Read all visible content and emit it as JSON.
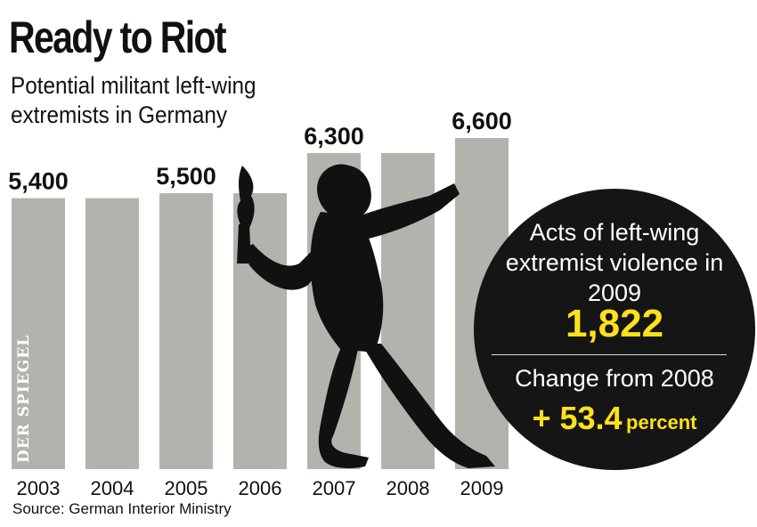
{
  "header": {
    "title": "Ready to Riot",
    "subtitle": "Potential militant left-wing extremists in Germany"
  },
  "source": "Source: German Interior Ministry",
  "watermark": "DER SPIEGEL",
  "info_circle": {
    "acts_label": "Acts of left-wing extremist violence in 2009",
    "acts_value": "1,822",
    "change_label": "Change from 2008",
    "change_value": "+ 53.4",
    "change_unit": "percent",
    "background_color": "#151515",
    "highlight_color": "#ffe11a"
  },
  "colors": {
    "bar": "#b3b2ad",
    "silhouette": "#111111"
  },
  "chart_data": {
    "type": "bar",
    "categories": [
      "2003",
      "2004",
      "2005",
      "2006",
      "2007",
      "2008",
      "2009"
    ],
    "values": [
      5400,
      5400,
      5500,
      5500,
      6300,
      6300,
      6600
    ],
    "data_labels": [
      "5,400",
      "",
      "5,500",
      "",
      "6,300",
      "",
      "6,600"
    ],
    "title": "Ready to Riot",
    "subtitle": "Potential militant left-wing extremists in Germany",
    "xlabel": "",
    "ylabel": "",
    "ylim": [
      0,
      6600
    ],
    "grid": false,
    "legend": "none"
  }
}
